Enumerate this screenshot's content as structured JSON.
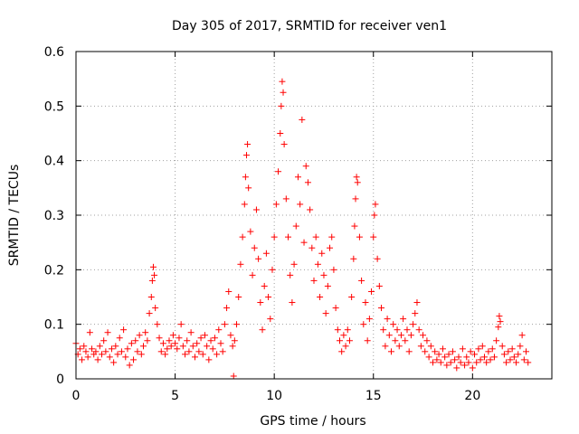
{
  "chart_data": {
    "type": "scatter",
    "title": "Day 305 of 2017, SRMTID for receiver ven1",
    "xlabel": "GPS time / hours",
    "ylabel": "SRMTID / TECUs",
    "xlim": [
      0,
      24
    ],
    "ylim": [
      0,
      0.6
    ],
    "xticks": [
      0,
      5,
      10,
      15,
      20
    ],
    "xtick_labels": [
      "0",
      "5",
      "10",
      "15",
      "20"
    ],
    "yticks": [
      0,
      0.1,
      0.2,
      0.3,
      0.4,
      0.5,
      0.6
    ],
    "ytick_labels": [
      "0",
      "0.1",
      "0.2",
      "0.3",
      "0.4",
      "0.5",
      "0.6"
    ],
    "grid": true,
    "marker": "plus",
    "color": "#ff0000",
    "series": [
      {
        "name": "ven1",
        "points": [
          [
            0.0,
            0.065
          ],
          [
            0.1,
            0.045
          ],
          [
            0.2,
            0.055
          ],
          [
            0.3,
            0.035
          ],
          [
            0.4,
            0.06
          ],
          [
            0.5,
            0.05
          ],
          [
            0.6,
            0.04
          ],
          [
            0.7,
            0.085
          ],
          [
            0.8,
            0.055
          ],
          [
            0.9,
            0.045
          ],
          [
            1.0,
            0.05
          ],
          [
            1.1,
            0.035
          ],
          [
            1.2,
            0.06
          ],
          [
            1.3,
            0.045
          ],
          [
            1.4,
            0.07
          ],
          [
            1.5,
            0.05
          ],
          [
            1.6,
            0.085
          ],
          [
            1.7,
            0.04
          ],
          [
            1.8,
            0.055
          ],
          [
            1.9,
            0.03
          ],
          [
            2.0,
            0.06
          ],
          [
            2.1,
            0.045
          ],
          [
            2.2,
            0.075
          ],
          [
            2.3,
            0.05
          ],
          [
            2.4,
            0.09
          ],
          [
            2.5,
            0.04
          ],
          [
            2.6,
            0.055
          ],
          [
            2.7,
            0.025
          ],
          [
            2.8,
            0.065
          ],
          [
            2.9,
            0.035
          ],
          [
            3.0,
            0.07
          ],
          [
            3.1,
            0.05
          ],
          [
            3.2,
            0.08
          ],
          [
            3.3,
            0.045
          ],
          [
            3.4,
            0.06
          ],
          [
            3.5,
            0.085
          ],
          [
            3.6,
            0.07
          ],
          [
            3.7,
            0.12
          ],
          [
            3.8,
            0.15
          ],
          [
            3.85,
            0.18
          ],
          [
            3.9,
            0.205
          ],
          [
            3.95,
            0.19
          ],
          [
            4.0,
            0.13
          ],
          [
            4.1,
            0.1
          ],
          [
            4.2,
            0.075
          ],
          [
            4.3,
            0.05
          ],
          [
            4.4,
            0.065
          ],
          [
            4.5,
            0.045
          ],
          [
            4.6,
            0.055
          ],
          [
            4.7,
            0.07
          ],
          [
            4.8,
            0.06
          ],
          [
            4.9,
            0.08
          ],
          [
            5.0,
            0.065
          ],
          [
            5.1,
            0.055
          ],
          [
            5.2,
            0.075
          ],
          [
            5.3,
            0.1
          ],
          [
            5.4,
            0.06
          ],
          [
            5.5,
            0.045
          ],
          [
            5.6,
            0.07
          ],
          [
            5.7,
            0.05
          ],
          [
            5.8,
            0.085
          ],
          [
            5.9,
            0.06
          ],
          [
            6.0,
            0.04
          ],
          [
            6.1,
            0.065
          ],
          [
            6.2,
            0.05
          ],
          [
            6.3,
            0.075
          ],
          [
            6.4,
            0.045
          ],
          [
            6.5,
            0.08
          ],
          [
            6.6,
            0.06
          ],
          [
            6.7,
            0.035
          ],
          [
            6.8,
            0.07
          ],
          [
            6.9,
            0.055
          ],
          [
            7.0,
            0.075
          ],
          [
            7.1,
            0.045
          ],
          [
            7.2,
            0.09
          ],
          [
            7.3,
            0.065
          ],
          [
            7.4,
            0.05
          ],
          [
            7.5,
            0.1
          ],
          [
            7.6,
            0.13
          ],
          [
            7.7,
            0.16
          ],
          [
            7.8,
            0.08
          ],
          [
            7.9,
            0.06
          ],
          [
            7.95,
            0.005
          ],
          [
            8.0,
            0.07
          ],
          [
            8.1,
            0.1
          ],
          [
            8.2,
            0.15
          ],
          [
            8.3,
            0.21
          ],
          [
            8.4,
            0.26
          ],
          [
            8.5,
            0.32
          ],
          [
            8.55,
            0.37
          ],
          [
            8.6,
            0.41
          ],
          [
            8.65,
            0.43
          ],
          [
            8.7,
            0.35
          ],
          [
            8.8,
            0.27
          ],
          [
            8.9,
            0.19
          ],
          [
            9.0,
            0.24
          ],
          [
            9.1,
            0.31
          ],
          [
            9.2,
            0.22
          ],
          [
            9.3,
            0.14
          ],
          [
            9.4,
            0.09
          ],
          [
            9.5,
            0.17
          ],
          [
            9.6,
            0.23
          ],
          [
            9.7,
            0.15
          ],
          [
            9.8,
            0.11
          ],
          [
            9.9,
            0.2
          ],
          [
            10.0,
            0.26
          ],
          [
            10.1,
            0.32
          ],
          [
            10.2,
            0.38
          ],
          [
            10.3,
            0.45
          ],
          [
            10.35,
            0.5
          ],
          [
            10.4,
            0.545
          ],
          [
            10.45,
            0.525
          ],
          [
            10.5,
            0.43
          ],
          [
            10.6,
            0.33
          ],
          [
            10.7,
            0.26
          ],
          [
            10.8,
            0.19
          ],
          [
            10.9,
            0.14
          ],
          [
            11.0,
            0.21
          ],
          [
            11.1,
            0.28
          ],
          [
            11.2,
            0.37
          ],
          [
            11.3,
            0.32
          ],
          [
            11.4,
            0.475
          ],
          [
            11.5,
            0.25
          ],
          [
            11.6,
            0.39
          ],
          [
            11.7,
            0.36
          ],
          [
            11.8,
            0.31
          ],
          [
            11.9,
            0.24
          ],
          [
            12.0,
            0.18
          ],
          [
            12.1,
            0.26
          ],
          [
            12.2,
            0.21
          ],
          [
            12.3,
            0.15
          ],
          [
            12.4,
            0.23
          ],
          [
            12.5,
            0.19
          ],
          [
            12.6,
            0.12
          ],
          [
            12.7,
            0.17
          ],
          [
            12.8,
            0.24
          ],
          [
            12.9,
            0.26
          ],
          [
            13.0,
            0.2
          ],
          [
            13.1,
            0.13
          ],
          [
            13.2,
            0.09
          ],
          [
            13.3,
            0.07
          ],
          [
            13.4,
            0.05
          ],
          [
            13.5,
            0.08
          ],
          [
            13.6,
            0.06
          ],
          [
            13.7,
            0.09
          ],
          [
            13.8,
            0.07
          ],
          [
            13.9,
            0.15
          ],
          [
            14.0,
            0.22
          ],
          [
            14.05,
            0.28
          ],
          [
            14.1,
            0.33
          ],
          [
            14.15,
            0.37
          ],
          [
            14.2,
            0.36
          ],
          [
            14.3,
            0.26
          ],
          [
            14.4,
            0.18
          ],
          [
            14.5,
            0.1
          ],
          [
            14.6,
            0.14
          ],
          [
            14.7,
            0.07
          ],
          [
            14.8,
            0.11
          ],
          [
            14.9,
            0.16
          ],
          [
            15.0,
            0.26
          ],
          [
            15.05,
            0.3
          ],
          [
            15.1,
            0.32
          ],
          [
            15.2,
            0.22
          ],
          [
            15.3,
            0.17
          ],
          [
            15.4,
            0.13
          ],
          [
            15.5,
            0.09
          ],
          [
            15.6,
            0.06
          ],
          [
            15.7,
            0.11
          ],
          [
            15.8,
            0.08
          ],
          [
            15.9,
            0.05
          ],
          [
            16.0,
            0.1
          ],
          [
            16.1,
            0.07
          ],
          [
            16.2,
            0.09
          ],
          [
            16.3,
            0.06
          ],
          [
            16.4,
            0.08
          ],
          [
            16.5,
            0.11
          ],
          [
            16.6,
            0.07
          ],
          [
            16.7,
            0.09
          ],
          [
            16.8,
            0.05
          ],
          [
            16.9,
            0.08
          ],
          [
            17.0,
            0.1
          ],
          [
            17.1,
            0.12
          ],
          [
            17.2,
            0.14
          ],
          [
            17.3,
            0.09
          ],
          [
            17.4,
            0.06
          ],
          [
            17.5,
            0.08
          ],
          [
            17.6,
            0.05
          ],
          [
            17.7,
            0.07
          ],
          [
            17.8,
            0.04
          ],
          [
            17.9,
            0.06
          ],
          [
            18.0,
            0.03
          ],
          [
            18.1,
            0.05
          ],
          [
            18.2,
            0.035
          ],
          [
            18.3,
            0.045
          ],
          [
            18.4,
            0.03
          ],
          [
            18.5,
            0.055
          ],
          [
            18.6,
            0.04
          ],
          [
            18.7,
            0.025
          ],
          [
            18.8,
            0.045
          ],
          [
            18.9,
            0.03
          ],
          [
            19.0,
            0.05
          ],
          [
            19.1,
            0.035
          ],
          [
            19.2,
            0.02
          ],
          [
            19.3,
            0.04
          ],
          [
            19.4,
            0.03
          ],
          [
            19.5,
            0.055
          ],
          [
            19.6,
            0.025
          ],
          [
            19.7,
            0.04
          ],
          [
            19.8,
            0.03
          ],
          [
            19.9,
            0.05
          ],
          [
            20.0,
            0.02
          ],
          [
            20.1,
            0.045
          ],
          [
            20.2,
            0.03
          ],
          [
            20.3,
            0.055
          ],
          [
            20.4,
            0.035
          ],
          [
            20.5,
            0.06
          ],
          [
            20.6,
            0.04
          ],
          [
            20.7,
            0.03
          ],
          [
            20.8,
            0.05
          ],
          [
            20.9,
            0.035
          ],
          [
            21.0,
            0.055
          ],
          [
            21.1,
            0.04
          ],
          [
            21.2,
            0.07
          ],
          [
            21.3,
            0.095
          ],
          [
            21.35,
            0.115
          ],
          [
            21.4,
            0.105
          ],
          [
            21.5,
            0.06
          ],
          [
            21.6,
            0.045
          ],
          [
            21.7,
            0.03
          ],
          [
            21.8,
            0.05
          ],
          [
            21.9,
            0.035
          ],
          [
            22.0,
            0.055
          ],
          [
            22.1,
            0.04
          ],
          [
            22.2,
            0.03
          ],
          [
            22.3,
            0.045
          ],
          [
            22.4,
            0.06
          ],
          [
            22.5,
            0.08
          ],
          [
            22.6,
            0.035
          ],
          [
            22.7,
            0.05
          ],
          [
            22.8,
            0.03
          ]
        ]
      }
    ]
  }
}
